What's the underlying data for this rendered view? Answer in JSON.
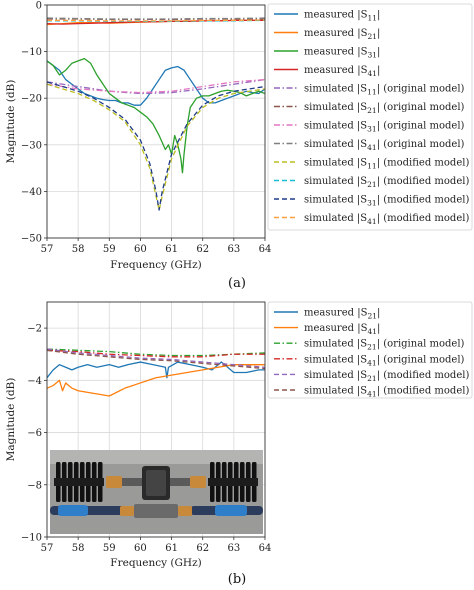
{
  "chart_data": [
    {
      "type": "line",
      "panel_caption": "(a)",
      "xlabel": "Frequency (GHz)",
      "ylabel": "Magnitude (dB)",
      "xlim": [
        57,
        64
      ],
      "ylim": [
        -50,
        0
      ],
      "xticks": [
        57,
        58,
        59,
        60,
        61,
        62,
        63,
        64
      ],
      "yticks": [
        -50,
        -40,
        -30,
        -20,
        -10,
        0
      ],
      "grid": true,
      "legend_position": "right-outside",
      "series": [
        {
          "name": "measured |S11|",
          "color": "#1f77b4",
          "dash": "solid",
          "x": [
            57,
            57.2,
            57.4,
            57.6,
            57.8,
            58,
            58.2,
            58.4,
            58.6,
            58.8,
            59,
            59.2,
            59.4,
            59.6,
            59.8,
            60,
            60.2,
            60.4,
            60.6,
            60.8,
            61,
            61.2,
            61.4,
            61.6,
            61.8,
            62,
            62.2,
            62.4,
            62.6,
            62.8,
            63,
            63.2,
            63.4,
            63.6,
            63.8,
            64
          ],
          "y": [
            -12,
            -13,
            -14,
            -16,
            -17,
            -18,
            -19,
            -19.5,
            -20,
            -20.3,
            -20.5,
            -20.5,
            -21,
            -21,
            -21.5,
            -21.5,
            -20,
            -18,
            -16,
            -14,
            -13.5,
            -13.2,
            -14,
            -16,
            -18,
            -20,
            -21,
            -21,
            -20.5,
            -20,
            -19.5,
            -19,
            -18.5,
            -18.8,
            -19,
            -18
          ]
        },
        {
          "name": "measured |S21|",
          "color": "#ff7f0e",
          "dash": "solid",
          "x": [
            57,
            57.5,
            58,
            58.5,
            59,
            59.5,
            60,
            60.5,
            61,
            61.5,
            62,
            62.5,
            63,
            63.5,
            64
          ],
          "y": [
            -4.2,
            -4.0,
            -3.8,
            -3.8,
            -3.9,
            -3.8,
            -3.7,
            -3.6,
            -3.5,
            -3.5,
            -3.4,
            -3.4,
            -3.3,
            -3.3,
            -3.3
          ]
        },
        {
          "name": "measured |S31|",
          "color": "#2ca02c",
          "dash": "solid",
          "x": [
            57,
            57.2,
            57.4,
            57.6,
            57.8,
            58,
            58.2,
            58.4,
            58.6,
            58.8,
            59,
            59.2,
            59.4,
            59.6,
            59.8,
            60,
            60.2,
            60.4,
            60.6,
            60.8,
            60.9,
            61,
            61.1,
            61.2,
            61.3,
            61.35,
            61.4,
            61.5,
            61.6,
            61.8,
            62,
            62.2,
            62.4,
            62.6,
            62.8,
            63,
            63.2,
            63.4,
            63.6,
            63.8,
            64
          ],
          "y": [
            -12,
            -13,
            -15,
            -14,
            -12.5,
            -12,
            -11.5,
            -12.5,
            -15,
            -17,
            -19,
            -20,
            -21,
            -21.5,
            -22,
            -23,
            -24,
            -25.5,
            -28,
            -31,
            -30,
            -32,
            -28,
            -30,
            -33,
            -36,
            -32,
            -26,
            -22,
            -20,
            -19.5,
            -19.5,
            -19,
            -18.5,
            -18.3,
            -18.5,
            -18.8,
            -19.5,
            -19,
            -18.5,
            -19
          ]
        },
        {
          "name": "measured |S41|",
          "color": "#d62728",
          "dash": "solid",
          "x": [
            57,
            57.5,
            58,
            58.5,
            59,
            59.5,
            60,
            60.5,
            61,
            61.5,
            62,
            62.5,
            63,
            63.5,
            64
          ],
          "y": [
            -4.0,
            -4.1,
            -4.0,
            -3.9,
            -3.8,
            -3.7,
            -3.6,
            -3.6,
            -3.5,
            -3.5,
            -3.4,
            -3.4,
            -3.3,
            -3.3,
            -3.3
          ]
        },
        {
          "name": "simulated |S11| (original model)",
          "color": "#9467bd",
          "dash": "dashdot",
          "x": [
            57,
            58,
            59,
            60,
            61,
            62,
            63,
            64
          ],
          "y": [
            -16.5,
            -17.5,
            -18.5,
            -19,
            -18.8,
            -18,
            -17,
            -16
          ]
        },
        {
          "name": "simulated |S21| (original model)",
          "color": "#8c564b",
          "dash": "dashdot",
          "x": [
            57,
            58,
            59,
            60,
            61,
            62,
            63,
            64
          ],
          "y": [
            -3.0,
            -3.0,
            -3.1,
            -3.1,
            -3.1,
            -3.0,
            -3.0,
            -3.0
          ]
        },
        {
          "name": "simulated |S31| (original model)",
          "color": "#e377c2",
          "dash": "dashdot",
          "x": [
            57,
            58,
            59,
            60,
            61,
            62,
            63,
            64
          ],
          "y": [
            -17,
            -18,
            -18.5,
            -18.8,
            -18.5,
            -17.5,
            -16.5,
            -16
          ]
        },
        {
          "name": "simulated |S41| (original model)",
          "color": "#7f7f7f",
          "dash": "dashdot",
          "x": [
            57,
            58,
            59,
            60,
            61,
            62,
            63,
            64
          ],
          "y": [
            -2.8,
            -2.9,
            -3.0,
            -3.0,
            -3.0,
            -2.9,
            -2.9,
            -2.8
          ]
        },
        {
          "name": "simulated |S11| (modified model)",
          "color": "#bcbd22",
          "dash": "dashed",
          "x": [
            57,
            57.5,
            58,
            58.5,
            59,
            59.5,
            60,
            60.3,
            60.5,
            60.6,
            60.7,
            61,
            61.5,
            62,
            62.5,
            63,
            63.5,
            64
          ],
          "y": [
            -17,
            -18,
            -19,
            -20.5,
            -22.5,
            -25,
            -30,
            -35,
            -41,
            -44,
            -41,
            -33,
            -26,
            -22,
            -20,
            -19,
            -18.5,
            -18
          ]
        },
        {
          "name": "simulated |S21| (modified model)",
          "color": "#17becf",
          "dash": "dashed",
          "x": [
            57,
            58,
            59,
            60,
            61,
            62,
            63,
            64
          ],
          "y": [
            -3.4,
            -3.4,
            -3.5,
            -3.5,
            -3.5,
            -3.4,
            -3.4,
            -3.3
          ]
        },
        {
          "name": "simulated |S31| (modified model)",
          "color": "#1f3c88",
          "dash": "dashed",
          "x": [
            57,
            57.5,
            58,
            58.5,
            59,
            59.5,
            60,
            60.3,
            60.5,
            60.6,
            60.7,
            61,
            61.5,
            62,
            62.5,
            63,
            63.5,
            64
          ],
          "y": [
            -16.5,
            -17.5,
            -18.5,
            -20,
            -22,
            -24.5,
            -29,
            -34,
            -40,
            -44,
            -40,
            -32,
            -25.5,
            -21.5,
            -19.5,
            -18.5,
            -18,
            -17.5
          ]
        },
        {
          "name": "simulated |S41| (modified model)",
          "color": "#ff9f40",
          "dash": "dashed",
          "x": [
            57,
            58,
            59,
            60,
            61,
            62,
            63,
            64
          ],
          "y": [
            -3.3,
            -3.3,
            -3.4,
            -3.4,
            -3.4,
            -3.3,
            -3.3,
            -3.2
          ]
        }
      ]
    },
    {
      "type": "line",
      "panel_caption": "(b)",
      "xlabel": "Frequency (GHz)",
      "ylabel": "Magnitude (dB)",
      "xlim": [
        57,
        64
      ],
      "ylim": [
        -10,
        -1
      ],
      "xticks": [
        57,
        58,
        59,
        60,
        61,
        62,
        63,
        64
      ],
      "yticks": [
        -10,
        -8,
        -6,
        -4,
        -2
      ],
      "grid": true,
      "legend_position": "right-outside",
      "inset_image": "photo of the measurement setup (two black heat-sink attenuators connected by coaxial adapters and blue cables)",
      "series": [
        {
          "name": "measured |S21|",
          "color": "#1f77b4",
          "dash": "solid",
          "x": [
            57,
            57.2,
            57.4,
            57.6,
            57.8,
            58,
            58.3,
            58.6,
            59,
            59.3,
            59.6,
            60,
            60.4,
            60.8,
            60.85,
            60.9,
            61.2,
            61.6,
            62,
            62.3,
            62.6,
            63,
            63.4,
            63.8,
            64
          ],
          "y": [
            -3.9,
            -3.6,
            -3.4,
            -3.5,
            -3.6,
            -3.5,
            -3.4,
            -3.5,
            -3.4,
            -3.5,
            -3.4,
            -3.3,
            -3.4,
            -3.5,
            -3.9,
            -3.5,
            -3.3,
            -3.4,
            -3.5,
            -3.6,
            -3.3,
            -3.7,
            -3.7,
            -3.6,
            -3.6
          ]
        },
        {
          "name": "measured |S41|",
          "color": "#ff7f0e",
          "dash": "solid",
          "x": [
            57,
            57.2,
            57.4,
            57.5,
            57.6,
            57.8,
            58,
            58.5,
            59,
            59.5,
            60,
            60.5,
            61,
            61.5,
            62,
            62.5,
            63,
            63.5,
            64
          ],
          "y": [
            -4.3,
            -4.2,
            -4.0,
            -4.4,
            -4.1,
            -4.3,
            -4.4,
            -4.5,
            -4.6,
            -4.3,
            -4.1,
            -3.9,
            -3.8,
            -3.7,
            -3.6,
            -3.5,
            -3.4,
            -3.4,
            -3.4
          ]
        },
        {
          "name": "simulated |S21| (original model)",
          "color": "#2ca02c",
          "dash": "dashdot",
          "x": [
            57,
            58,
            59,
            60,
            61,
            62,
            63,
            64
          ],
          "y": [
            -2.8,
            -2.85,
            -2.9,
            -3.0,
            -3.05,
            -3.05,
            -3.0,
            -2.95
          ]
        },
        {
          "name": "simulated |S41| (original model)",
          "color": "#d62728",
          "dash": "dashdot",
          "x": [
            57,
            58,
            59,
            60,
            61,
            62,
            63,
            64
          ],
          "y": [
            -2.85,
            -2.9,
            -3.0,
            -3.05,
            -3.1,
            -3.1,
            -3.0,
            -3.0
          ]
        },
        {
          "name": "simulated |S21| (modified model)",
          "color": "#9467bd",
          "dash": "dashed",
          "x": [
            57,
            58,
            59,
            60,
            61,
            62,
            63,
            64
          ],
          "y": [
            -2.8,
            -2.95,
            -3.05,
            -3.15,
            -3.2,
            -3.3,
            -3.4,
            -3.5
          ]
        },
        {
          "name": "simulated |S41| (modified model)",
          "color": "#8c564b",
          "dash": "dashed",
          "x": [
            57,
            58,
            59,
            60,
            61,
            62,
            63,
            64
          ],
          "y": [
            -2.85,
            -3.0,
            -3.1,
            -3.2,
            -3.25,
            -3.35,
            -3.45,
            -3.55
          ]
        }
      ]
    }
  ]
}
